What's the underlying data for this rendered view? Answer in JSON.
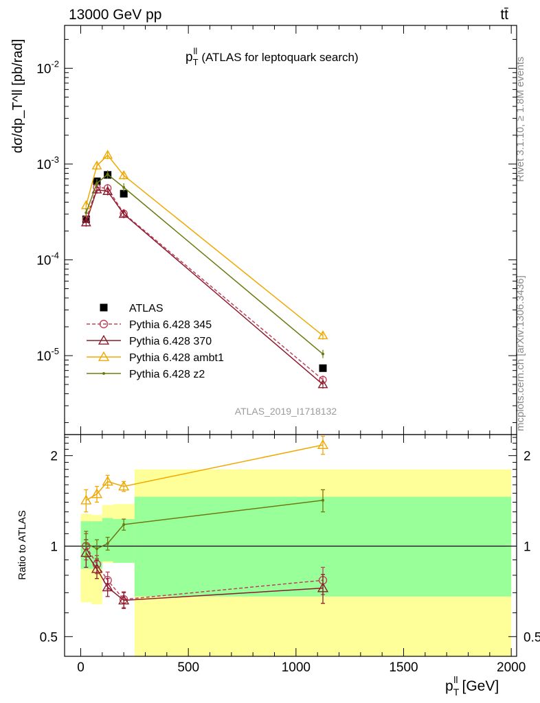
{
  "header": {
    "energy_label": "13000 GeV pp",
    "process_label": "tt̄"
  },
  "side_labels": {
    "rivet": "Rivet 3.1.10, ≥ 1.8M events",
    "mcplots": "mcplots.cern.ch [arXiv:1306.3436]"
  },
  "chart_data": [
    {
      "type": "scatter",
      "panel": "main",
      "title": "p_T^ll (ATLAS for leptoquark search)",
      "title_main": "p",
      "title_sup": "ll",
      "title_sub": "T",
      "title_rest": "(ATLAS for leptoquark search)",
      "ylabel": "dσ/dp_T^ll [pb/rad]",
      "yscale": "log",
      "ylim": [
        1.5e-06,
        0.028
      ],
      "xlim": [
        -75,
        2025
      ],
      "ytick_labels": [
        "10^-5",
        "10^-4",
        "10^-3",
        "10^-2"
      ],
      "watermark": "ATLAS_2019_I1718132",
      "legend_position": "lower-left",
      "x": [
        25,
        75,
        125,
        200,
        1125
      ],
      "series": [
        {
          "name": "ATLAS",
          "color": "#000000",
          "marker": "filled-square",
          "line": "none",
          "values": [
            0.000265,
            0.00066,
            0.00077,
            0.00049,
            7.4e-06
          ]
        },
        {
          "name": "Pythia 6.428 345",
          "color": "#c0405a",
          "marker": "open-circle",
          "line": "dashed",
          "values": [
            0.000265,
            0.00057,
            0.00056,
            0.000305,
            5.6e-06
          ]
        },
        {
          "name": "Pythia 6.428 370",
          "color": "#8b1a2c",
          "marker": "open-triangle",
          "line": "solid",
          "values": [
            0.000245,
            0.00054,
            0.00052,
            0.0003,
            5e-06
          ]
        },
        {
          "name": "Pythia 6.428 ambt1",
          "color": "#f0a800",
          "marker": "open-triangle",
          "line": "solid",
          "values": [
            0.00037,
            0.00096,
            0.00124,
            0.00076,
            1.62e-05
          ]
        },
        {
          "name": "Pythia 6.428 z2",
          "color": "#6b7a10",
          "marker": "dot",
          "line": "solid",
          "values": [
            0.00031,
            0.00063,
            0.00078,
            0.00057,
            1.04e-05
          ]
        }
      ]
    },
    {
      "type": "scatter",
      "panel": "ratio",
      "ylabel": "Ratio to ATLAS",
      "xlabel": "p_T^ll [GeV]",
      "xlabel_main": "p",
      "xlabel_sup": "ll",
      "xlabel_sub": "T",
      "xlabel_rest": "[GeV]",
      "yscale": "log",
      "ylim": [
        0.43,
        2.35
      ],
      "xlim": [
        -75,
        2025
      ],
      "ytick_labels": [
        "0.5",
        "1",
        "2"
      ],
      "xtick_labels": [
        "0",
        "500",
        "1000",
        "1500",
        "2000"
      ],
      "x": [
        25,
        75,
        125,
        200,
        1125
      ],
      "reference_line": 1,
      "bands": {
        "edges": [
          0,
          50,
          100,
          150,
          250,
          2000
        ],
        "yellow": [
          [
            0.65,
            1.28
          ],
          [
            0.64,
            1.27
          ],
          [
            0.88,
            1.37
          ],
          [
            0.88,
            1.38
          ],
          [
            0.32,
            1.8
          ]
        ],
        "green": [
          [
            0.84,
            1.21
          ],
          [
            0.84,
            1.21
          ],
          [
            0.89,
            1.24
          ],
          [
            0.88,
            1.23
          ],
          [
            0.68,
            1.46
          ]
        ],
        "yellow_color": "#ffff99",
        "green_color": "#99ff99"
      },
      "series": [
        {
          "name": "Pythia 6.428 345",
          "color": "#c0405a",
          "marker": "open-circle",
          "line": "dashed",
          "values": [
            1.0,
            0.87,
            0.77,
            0.665,
            0.77
          ],
          "errors": [
            0.1,
            0.06,
            0.05,
            0.04,
            0.08
          ]
        },
        {
          "name": "Pythia 6.428 370",
          "color": "#8b1a2c",
          "marker": "open-triangle",
          "line": "solid",
          "values": [
            0.95,
            0.84,
            0.73,
            0.66,
            0.725
          ],
          "errors": [
            0.1,
            0.06,
            0.05,
            0.04,
            0.08
          ]
        },
        {
          "name": "Pythia 6.428 ambt1",
          "color": "#f0a800",
          "marker": "open-triangle",
          "line": "solid",
          "values": [
            1.42,
            1.49,
            1.64,
            1.58,
            2.17
          ],
          "errors": [
            0.12,
            0.09,
            0.08,
            0.06,
            0.15
          ]
        },
        {
          "name": "Pythia 6.428 z2",
          "color": "#6b7a10",
          "marker": "dot",
          "line": "solid",
          "values": [
            1.02,
            0.98,
            1.02,
            1.18,
            1.42
          ],
          "errors": [
            0.1,
            0.07,
            0.05,
            0.05,
            0.12
          ]
        }
      ]
    }
  ]
}
